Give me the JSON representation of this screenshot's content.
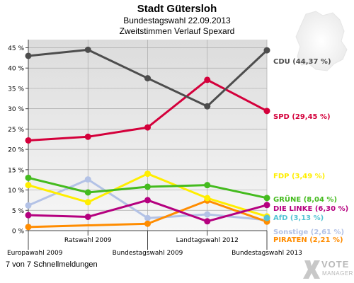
{
  "header": {
    "title": "Stadt Gütersloh",
    "subtitle1": "Bundestagswahl 22.09.2013",
    "subtitle2": "Zweitstimmen Verlauf Spexard"
  },
  "footer": {
    "text": "7 von 7 Schnellmeldungen"
  },
  "logo": {
    "line1": "VOTE",
    "line2": "MANAGER"
  },
  "chart_data": {
    "type": "line",
    "ylim": [
      0,
      47
    ],
    "y_ticks": [
      "0 %",
      "5 %",
      "10 %",
      "15 %",
      "20 %",
      "25 %",
      "30 %",
      "35 %",
      "40 %",
      "45 %"
    ],
    "y_tick_values": [
      0,
      5,
      10,
      15,
      20,
      25,
      30,
      35,
      40,
      45
    ],
    "categories": [
      "Europawahl 2009",
      "Ratswahl 2009",
      "Bundestagswahl 2009",
      "Landtagswahl 2012",
      "Bundestagswahl 2013"
    ],
    "category_rows": [
      "bottom",
      "top",
      "bottom",
      "top",
      "bottom"
    ],
    "grid": true,
    "series": [
      {
        "name": "CDU",
        "color": "#4d4d4d",
        "values": [
          43.0,
          44.5,
          37.5,
          30.6,
          44.37
        ],
        "label": "CDU (44,37 %)"
      },
      {
        "name": "SPD",
        "color": "#d4003b",
        "values": [
          22.2,
          23.1,
          25.4,
          37.1,
          29.45
        ],
        "label": "SPD (29,45 %)"
      },
      {
        "name": "FDP",
        "color": "#ffee00",
        "values": [
          11.2,
          7.0,
          14.0,
          8.0,
          3.5
        ],
        "label": "FDP (3,49 %)"
      },
      {
        "name": "GRÜNE",
        "color": "#44bb1e",
        "values": [
          13.0,
          9.4,
          10.8,
          11.2,
          8.04
        ],
        "label": "GRÜNE (8,04 %)"
      },
      {
        "name": "DIE LINKE",
        "color": "#b5007f",
        "values": [
          3.8,
          3.4,
          7.5,
          2.3,
          6.3
        ],
        "label": "DIE LINKE (6,30 %)"
      },
      {
        "name": "AfD",
        "color": "#55c4d4",
        "values": [
          null,
          null,
          null,
          null,
          3.13
        ],
        "label": "AfD (3,13 %)"
      },
      {
        "name": "Sonstige",
        "color": "#b3c2e6",
        "values": [
          6.2,
          12.6,
          3.1,
          4.0,
          2.61
        ],
        "label": "Sonstige (2,61 %)"
      },
      {
        "name": "PIRATEN",
        "color": "#ff8c00",
        "values": [
          0.9,
          null,
          1.7,
          7.4,
          2.21
        ],
        "label": "PIRATEN (2,21 %)"
      }
    ]
  }
}
